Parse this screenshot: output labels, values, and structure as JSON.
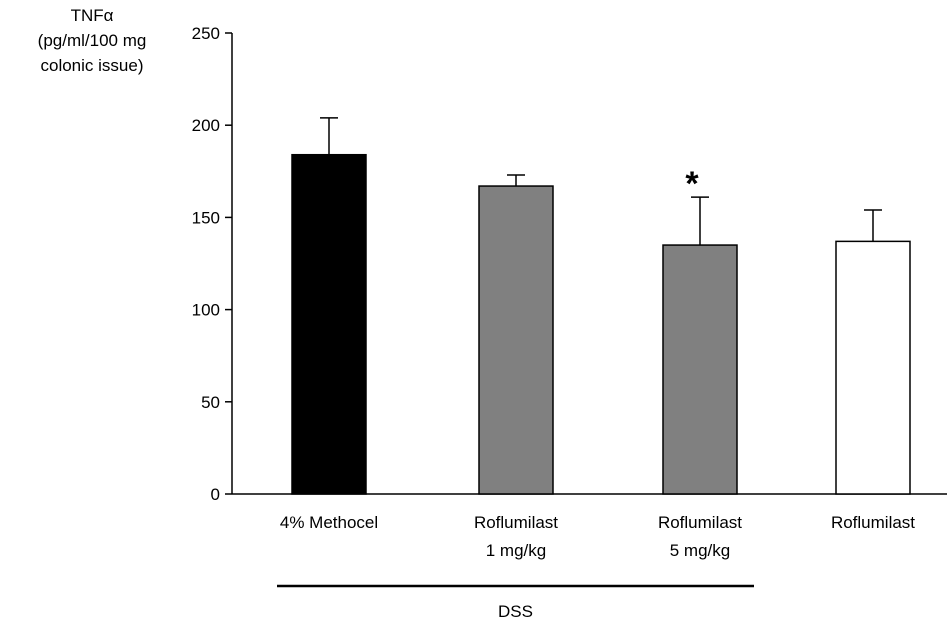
{
  "chart_data": {
    "type": "bar",
    "title": "",
    "ylabel_lines": [
      "TNFα",
      "(pg/ml/100 mg",
      "colonic issue)"
    ],
    "xlabel": "",
    "ylim": [
      0,
      250
    ],
    "yticks": [
      0,
      50,
      100,
      150,
      200,
      250
    ],
    "categories": [
      {
        "lines": [
          "4% Methocel"
        ]
      },
      {
        "lines": [
          "Roflumilast",
          "1 mg/kg"
        ]
      },
      {
        "lines": [
          "Roflumilast",
          "5 mg/kg"
        ]
      },
      {
        "lines": [
          "Roflumilast"
        ]
      }
    ],
    "values": [
      184,
      167,
      135,
      137
    ],
    "errors": [
      20,
      6,
      26,
      17
    ],
    "bar_colors": [
      "#000000",
      "#808080",
      "#808080",
      "#ffffff"
    ],
    "annotations": [
      "",
      "",
      "*",
      ""
    ],
    "group": {
      "label": "DSS",
      "from_category": 0,
      "to_category": 2
    },
    "grid": false,
    "legend": "none"
  }
}
